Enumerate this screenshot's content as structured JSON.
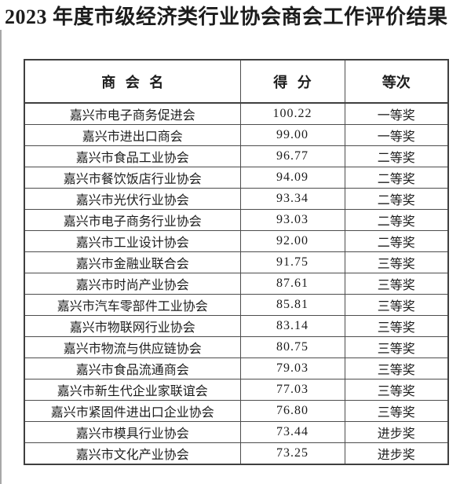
{
  "page_title": "2023 年度市级经济类行业协会商会工作评价结果",
  "table": {
    "columns": [
      "商 会 名",
      "得 分",
      "等次"
    ],
    "rows": [
      {
        "name": "嘉兴市电子商务促进会",
        "score": "100.22",
        "grade": "一等奖"
      },
      {
        "name": "嘉兴市进出口商会",
        "score": "99.00",
        "grade": "一等奖"
      },
      {
        "name": "嘉兴市食品工业协会",
        "score": "96.77",
        "grade": "二等奖"
      },
      {
        "name": "嘉兴市餐饮饭店行业协会",
        "score": "94.09",
        "grade": "二等奖"
      },
      {
        "name": "嘉兴市光伏行业协会",
        "score": "93.34",
        "grade": "二等奖"
      },
      {
        "name": "嘉兴市电子商务行业协会",
        "score": "93.03",
        "grade": "二等奖"
      },
      {
        "name": "嘉兴市工业设计协会",
        "score": "92.00",
        "grade": "二等奖"
      },
      {
        "name": "嘉兴市金融业联合会",
        "score": "91.75",
        "grade": "三等奖"
      },
      {
        "name": "嘉兴市时尚产业协会",
        "score": "87.61",
        "grade": "三等奖"
      },
      {
        "name": "嘉兴市汽车零部件工业协会",
        "score": "85.81",
        "grade": "三等奖"
      },
      {
        "name": "嘉兴市物联网行业协会",
        "score": "83.14",
        "grade": "三等奖"
      },
      {
        "name": "嘉兴市物流与供应链协会",
        "score": "80.75",
        "grade": "三等奖"
      },
      {
        "name": "嘉兴市食品流通商会",
        "score": "79.03",
        "grade": "三等奖"
      },
      {
        "name": "嘉兴市新生代企业家联谊会",
        "score": "77.03",
        "grade": "三等奖"
      },
      {
        "name": "嘉兴市紧固件进出口企业协会",
        "score": "76.80",
        "grade": "三等奖"
      },
      {
        "name": "嘉兴市模具行业协会",
        "score": "73.44",
        "grade": "进步奖"
      },
      {
        "name": "嘉兴市文化产业协会",
        "score": "73.25",
        "grade": "进步奖"
      }
    ]
  }
}
